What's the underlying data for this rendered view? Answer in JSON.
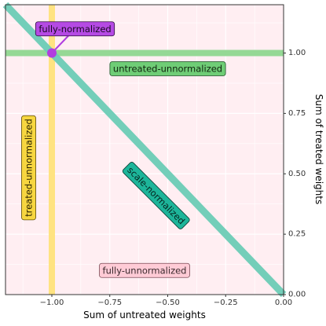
{
  "chart_data": {
    "type": "line",
    "xlabel": "Sum of untreated weights",
    "ylabel": "Sum of treated weights",
    "xlim": [
      -1.2,
      0.0
    ],
    "ylim": [
      0.0,
      1.2
    ],
    "x_ticks": [
      -1.0,
      -0.75,
      -0.5,
      -0.25,
      0.0
    ],
    "x_tick_labels": [
      "−1.00",
      "−0.75",
      "−0.50",
      "−0.25",
      "0.00"
    ],
    "y_ticks": [
      0.0,
      0.25,
      0.5,
      0.75,
      1.0
    ],
    "y_tick_labels": [
      "0.00",
      "0.25",
      "0.50",
      "0.75",
      "1.00"
    ],
    "y_axis_position": "right",
    "grid": true,
    "panel_color": "#ffeef2",
    "lines": [
      {
        "name": "treated-unnormalized",
        "kind": "vertical",
        "x": -1.0,
        "color": "#ffe27a"
      },
      {
        "name": "untreated-unnormalized",
        "kind": "horizontal",
        "y": 1.0,
        "color": "#8fd68f"
      },
      {
        "name": "scale-normalized",
        "kind": "diagonal",
        "points": [
          [
            -1.2,
            1.2
          ],
          [
            0.0,
            0.0
          ]
        ],
        "color": "#6ccbb5"
      }
    ],
    "points": [
      {
        "name": "fully-normalized",
        "x": -1.0,
        "y": 1.0,
        "color": "#b13ee0"
      }
    ],
    "annotations": [
      {
        "text": "fully-normalized",
        "x": -0.9,
        "y": 1.1,
        "fill": "#b54ae4",
        "border": "#2a0a3a",
        "text_color": "#1a0a24",
        "angle": 0,
        "connector_to": [
          -1.0,
          1.0
        ],
        "connector_color": "#b13ee0"
      },
      {
        "text": "untreated-unnormalized",
        "x": -0.5,
        "y": 0.935,
        "fill": "#6fcd76",
        "border": "#1e4d24",
        "text_color": "#10250f",
        "angle": 0
      },
      {
        "text": "treated-unnormalized",
        "x": -1.1,
        "y": 0.525,
        "fill": "#f7d640",
        "border": "#5a4a00",
        "text_color": "#2a2200",
        "angle": -90
      },
      {
        "text": "scale-normalized",
        "x": -0.55,
        "y": 0.41,
        "fill": "#1db59a",
        "border": "#0a3d33",
        "text_color": "#06251f",
        "angle": 45
      },
      {
        "text": "fully-unnormalized",
        "x": -0.6,
        "y": 0.1,
        "fill": "#ffcbd6",
        "border": "#7a4a55",
        "text_color": "#3a2a2e",
        "angle": 0
      }
    ]
  }
}
